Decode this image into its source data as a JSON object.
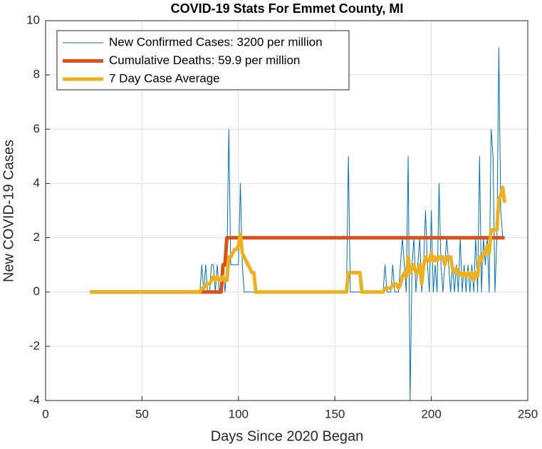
{
  "chart_data": {
    "type": "line",
    "title": "COVID-19 Stats For Emmet County, MI",
    "xlabel": "Days Since 2020 Began",
    "ylabel": "New COVID-19 Cases",
    "x": [
      23,
      24,
      25,
      26,
      27,
      28,
      29,
      30,
      31,
      32,
      33,
      34,
      35,
      36,
      37,
      38,
      39,
      40,
      41,
      42,
      43,
      44,
      45,
      46,
      47,
      48,
      49,
      50,
      51,
      52,
      53,
      54,
      55,
      56,
      57,
      58,
      59,
      60,
      61,
      62,
      63,
      64,
      65,
      66,
      67,
      68,
      69,
      70,
      71,
      72,
      73,
      74,
      75,
      76,
      77,
      78,
      79,
      80,
      81,
      82,
      83,
      84,
      85,
      86,
      87,
      88,
      89,
      90,
      91,
      92,
      93,
      94,
      95,
      96,
      97,
      98,
      99,
      100,
      101,
      102,
      103,
      104,
      105,
      106,
      107,
      108,
      109,
      110,
      111,
      112,
      113,
      114,
      115,
      116,
      117,
      118,
      119,
      120,
      121,
      122,
      123,
      124,
      125,
      126,
      127,
      128,
      129,
      130,
      131,
      132,
      133,
      134,
      135,
      136,
      137,
      138,
      139,
      140,
      141,
      142,
      143,
      144,
      145,
      146,
      147,
      148,
      149,
      150,
      151,
      152,
      153,
      154,
      155,
      156,
      157,
      158,
      159,
      160,
      161,
      162,
      163,
      164,
      165,
      166,
      167,
      168,
      169,
      170,
      171,
      172,
      173,
      174,
      175,
      176,
      177,
      178,
      179,
      180,
      181,
      182,
      183,
      184,
      185,
      186,
      187,
      188,
      189,
      190,
      191,
      192,
      193,
      194,
      195,
      196,
      197,
      198,
      199,
      200,
      201,
      202,
      203,
      204,
      205,
      206,
      207,
      208,
      209,
      210,
      211,
      212,
      213,
      214,
      215,
      216,
      217,
      218,
      219,
      220,
      221,
      222,
      223,
      224,
      225,
      226,
      227,
      228,
      229,
      230,
      231,
      232,
      233,
      234,
      235,
      236,
      237,
      238
    ],
    "series": [
      {
        "name": "New Confirmed Cases: 3200 per million",
        "color": "#0072BD",
        "width": 1,
        "values": [
          0,
          0,
          0,
          0,
          0,
          0,
          0,
          0,
          0,
          0,
          0,
          0,
          0,
          0,
          0,
          0,
          0,
          0,
          0,
          0,
          0,
          0,
          0,
          0,
          0,
          0,
          0,
          0,
          0,
          0,
          0,
          0,
          0,
          0,
          0,
          0,
          0,
          0,
          0,
          0,
          0,
          0,
          0,
          0,
          0,
          0,
          0,
          0,
          0,
          0,
          0,
          0,
          0,
          0,
          0,
          0,
          0,
          0,
          1,
          0,
          1,
          0,
          0,
          1,
          1,
          0,
          1,
          0,
          0,
          1,
          0,
          1,
          6,
          1,
          1,
          1,
          1,
          1,
          4,
          1,
          0,
          0,
          0,
          0,
          0,
          0,
          0,
          0,
          0,
          0,
          0,
          0,
          0,
          0,
          0,
          0,
          0,
          0,
          0,
          0,
          0,
          0,
          0,
          0,
          0,
          0,
          0,
          0,
          0,
          0,
          0,
          0,
          0,
          0,
          0,
          0,
          0,
          0,
          0,
          0,
          0,
          0,
          0,
          0,
          0,
          0,
          0,
          0,
          0,
          0,
          0,
          0,
          0,
          0,
          5,
          0,
          0,
          0,
          0,
          0,
          0,
          0,
          0,
          0,
          0,
          0,
          0,
          0,
          0,
          0,
          0,
          0,
          0,
          1,
          0,
          0,
          0,
          1,
          0,
          0,
          0,
          1,
          2,
          1,
          0,
          5,
          -4,
          1,
          2,
          0,
          1,
          2,
          0,
          1,
          3,
          1,
          0,
          3,
          0,
          1,
          0,
          4,
          1,
          0,
          1,
          2,
          1,
          0,
          1,
          0,
          1,
          0,
          2,
          0,
          1,
          0,
          1,
          0,
          1,
          0,
          2,
          0,
          5,
          0,
          2,
          1,
          2,
          0,
          6,
          5,
          0,
          2,
          9,
          3,
          2,
          2
        ]
      },
      {
        "name": "Cumulative Deaths: 59.9 per million",
        "color": "#D95319",
        "width": 5,
        "values": [
          0,
          0,
          0,
          0,
          0,
          0,
          0,
          0,
          0,
          0,
          0,
          0,
          0,
          0,
          0,
          0,
          0,
          0,
          0,
          0,
          0,
          0,
          0,
          0,
          0,
          0,
          0,
          0,
          0,
          0,
          0,
          0,
          0,
          0,
          0,
          0,
          0,
          0,
          0,
          0,
          0,
          0,
          0,
          0,
          0,
          0,
          0,
          0,
          0,
          0,
          0,
          0,
          0,
          0,
          0,
          0,
          0,
          0,
          0,
          0,
          0,
          0,
          0,
          0,
          0,
          0,
          0,
          0,
          0,
          1,
          1,
          2,
          2,
          2,
          2,
          2,
          2,
          2,
          2,
          2,
          2,
          2,
          2,
          2,
          2,
          2,
          2,
          2,
          2,
          2,
          2,
          2,
          2,
          2,
          2,
          2,
          2,
          2,
          2,
          2,
          2,
          2,
          2,
          2,
          2,
          2,
          2,
          2,
          2,
          2,
          2,
          2,
          2,
          2,
          2,
          2,
          2,
          2,
          2,
          2,
          2,
          2,
          2,
          2,
          2,
          2,
          2,
          2,
          2,
          2,
          2,
          2,
          2,
          2,
          2,
          2,
          2,
          2,
          2,
          2,
          2,
          2,
          2,
          2,
          2,
          2,
          2,
          2,
          2,
          2,
          2,
          2,
          2,
          2,
          2,
          2,
          2,
          2,
          2,
          2,
          2,
          2,
          2,
          2,
          2,
          2,
          2,
          2,
          2,
          2,
          2,
          2,
          2,
          2,
          2,
          2,
          2,
          2,
          2,
          2,
          2,
          2,
          2,
          2,
          2,
          2,
          2,
          2,
          2,
          2,
          2,
          2,
          2,
          2,
          2,
          2,
          2,
          2,
          2,
          2,
          2,
          2,
          2,
          2,
          2,
          2,
          2,
          2,
          2,
          2,
          2,
          2,
          2,
          2,
          2,
          2
        ]
      },
      {
        "name": "7 Day Case Average",
        "color": "#EDB120",
        "width": 5,
        "values": [
          0,
          0,
          0,
          0,
          0,
          0,
          0,
          0,
          0,
          0,
          0,
          0,
          0,
          0,
          0,
          0,
          0,
          0,
          0,
          0,
          0,
          0,
          0,
          0,
          0,
          0,
          0,
          0,
          0,
          0,
          0,
          0,
          0,
          0,
          0,
          0,
          0,
          0,
          0,
          0,
          0,
          0,
          0,
          0,
          0,
          0,
          0,
          0,
          0,
          0,
          0,
          0,
          0,
          0,
          0,
          0,
          0,
          0,
          0.14,
          0.14,
          0.29,
          0.29,
          0.29,
          0.43,
          0.57,
          0.43,
          0.57,
          0.43,
          0.43,
          0.57,
          0.43,
          0.43,
          1.29,
          1.29,
          1.43,
          1.57,
          1.57,
          1.71,
          2.14,
          1.43,
          1.29,
          1.14,
          1,
          0.86,
          0.71,
          0.71,
          0,
          0,
          0,
          0,
          0,
          0,
          0,
          0,
          0,
          0,
          0,
          0,
          0,
          0,
          0,
          0,
          0,
          0,
          0,
          0,
          0,
          0,
          0,
          0,
          0,
          0,
          0,
          0,
          0,
          0,
          0,
          0,
          0,
          0,
          0,
          0,
          0,
          0,
          0,
          0,
          0,
          0,
          0,
          0,
          0,
          0,
          0,
          0,
          0.71,
          0.71,
          0.71,
          0.71,
          0.71,
          0.71,
          0.71,
          0,
          0,
          0,
          0,
          0,
          0,
          0,
          0,
          0,
          0,
          0,
          0,
          0.14,
          0.14,
          0.14,
          0.14,
          0.29,
          0.29,
          0.29,
          0.14,
          0.29,
          0.57,
          0.71,
          0.57,
          1.29,
          0.71,
          0.86,
          1,
          0.71,
          0.71,
          1,
          0.29,
          1,
          1.29,
          1.14,
          1.14,
          1.43,
          1.14,
          1.29,
          1.14,
          1.29,
          1.29,
          1.29,
          1,
          1.29,
          1.29,
          1.29,
          0.86,
          0.71,
          0.86,
          0.71,
          0.71,
          0.57,
          0.71,
          0.57,
          0.71,
          0.57,
          0.71,
          0.43,
          0.71,
          0.57,
          1.29,
          1.14,
          1.43,
          1.43,
          1.71,
          1.43,
          2.29,
          2.29,
          2.29,
          2.29,
          3.43,
          3.57,
          3.86,
          3.29
        ]
      }
    ],
    "xlim": [
      0,
      250
    ],
    "xticks": [
      0,
      50,
      100,
      150,
      200,
      250
    ],
    "ylim": [
      -4,
      10
    ],
    "yticks": [
      -4,
      -2,
      0,
      2,
      4,
      6,
      8,
      10
    ],
    "grid": true,
    "legend": "northwest"
  }
}
